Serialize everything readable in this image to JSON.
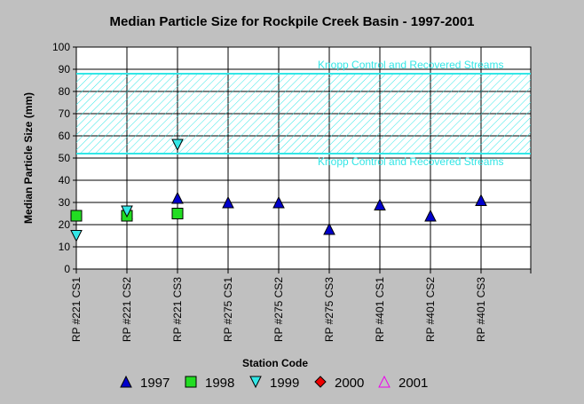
{
  "chart_data": {
    "type": "scatter",
    "title": "Median Particle Size for Rockpile Creek Basin - 1997-2001",
    "xlabel": "Station Code",
    "ylabel": "Median Particle Size (mm)",
    "ylim": [
      0,
      100
    ],
    "yticks": [
      0,
      10,
      20,
      30,
      40,
      50,
      60,
      70,
      80,
      90,
      100
    ],
    "grid": true,
    "legend_position": "bottom",
    "categories": [
      "RP #221 CS1",
      "RP #221 CS2",
      "RP #221 CS3",
      "RP #275 CS1",
      "RP #275 CS2",
      "RP #275 CS3",
      "RP #401 CS1",
      "RP #401 CS2",
      "RP #401 CS3"
    ],
    "band": {
      "range": [
        52,
        88
      ],
      "upper_label": "Knopp Control and Recovered Streams",
      "lower_label": "Knopp Control and Recovered Streams",
      "color": "#33e6e6"
    },
    "series": [
      {
        "name": "1997",
        "marker": "triangle-up",
        "color": "#0000cc",
        "values": [
          null,
          25,
          32,
          30,
          30,
          18,
          29,
          24,
          31
        ]
      },
      {
        "name": "1998",
        "marker": "square",
        "color": "#22dd22",
        "values": [
          24,
          24,
          25,
          null,
          null,
          null,
          null,
          null,
          null
        ]
      },
      {
        "name": "1999",
        "marker": "triangle-down",
        "color": "#33e6e6",
        "values": [
          15,
          26,
          56,
          null,
          null,
          null,
          null,
          null,
          null
        ]
      },
      {
        "name": "2000",
        "marker": "diamond",
        "color": "#ee0000",
        "values": [
          null,
          null,
          null,
          null,
          null,
          null,
          null,
          null,
          null
        ]
      },
      {
        "name": "2001",
        "marker": "triangle-up-open",
        "color": "#ee00ee",
        "values": [
          null,
          null,
          null,
          null,
          null,
          null,
          null,
          null,
          null
        ]
      }
    ]
  }
}
